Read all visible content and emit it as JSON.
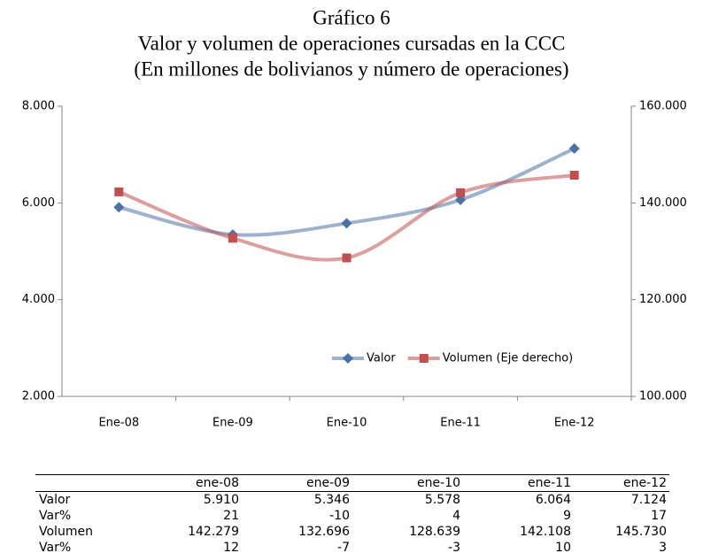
{
  "chart_data": {
    "type": "line",
    "title": "Gráfico 6",
    "subtitle": [
      "Valor y volumen de operaciones cursadas en la CCC",
      "(En millones de bolivianos y número de operaciones)"
    ],
    "categories": [
      "Ene-08",
      "Ene-09",
      "Ene-10",
      "Ene-11",
      "Ene-12"
    ],
    "series": [
      {
        "name": "Valor",
        "color": "#4a72a8",
        "marker": "diamond",
        "values": [
          5910,
          5346,
          5578,
          6064,
          7124
        ]
      },
      {
        "name": "Volumen (Eje derecho)",
        "color": "#c0504d",
        "marker": "square",
        "axis": "y2",
        "values": [
          142279,
          132696,
          128639,
          142108,
          145730
        ]
      }
    ],
    "ylim": [
      2000,
      8000
    ],
    "yticks": [
      {
        "value": 2000,
        "label": "2.000"
      },
      {
        "value": 4000,
        "label": "4.000"
      },
      {
        "value": 6000,
        "label": "6.000"
      },
      {
        "value": 8000,
        "label": "8.000"
      }
    ],
    "y2lim": [
      100000,
      160000
    ],
    "y2ticks": [
      {
        "value": 100000,
        "label": "100.000"
      },
      {
        "value": 120000,
        "label": "120.000"
      },
      {
        "value": 140000,
        "label": "140.000"
      },
      {
        "value": 160000,
        "label": "160.000"
      }
    ],
    "smooth": true,
    "legend": "lower right"
  },
  "table": {
    "header": [
      "ene-08",
      "ene-09",
      "ene-10",
      "ene-11",
      "ene-12"
    ],
    "rows": [
      [
        "Valor",
        "5.910",
        "5.346",
        "5.578",
        "6.064",
        "7.124"
      ],
      [
        "Var%",
        "21",
        "-10",
        "4",
        "9",
        "17"
      ],
      [
        "Volumen",
        "142.279",
        "132.696",
        "128.639",
        "142.108",
        "145.730"
      ],
      [
        "Var%",
        "12",
        "-7",
        "-3",
        "10",
        "3"
      ]
    ]
  }
}
